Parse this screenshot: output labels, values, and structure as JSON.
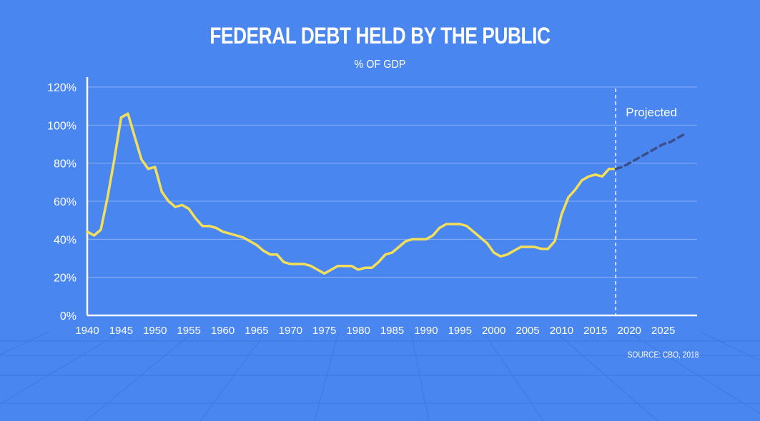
{
  "title": "FEDERAL DEBT HELD BY THE PUBLIC",
  "subtitle": "% OF GDP",
  "source": "SOURCE: CBO, 2018",
  "colors": {
    "background": "#4a86f0",
    "line": "#f3df5a",
    "projected": "#3a4f8a",
    "axis": "#ffffff",
    "grid": "#8ab0f6"
  },
  "chart_data": {
    "type": "line",
    "title": "FEDERAL DEBT HELD BY THE PUBLIC",
    "subtitle": "% OF GDP",
    "xlabel": "",
    "ylabel": "",
    "xlim": [
      1940,
      2030
    ],
    "ylim": [
      0,
      120
    ],
    "x_ticks": [
      1940,
      1945,
      1950,
      1955,
      1960,
      1965,
      1970,
      1975,
      1980,
      1985,
      1990,
      1995,
      2000,
      2005,
      2010,
      2015,
      2020,
      2025
    ],
    "y_ticks": [
      0,
      20,
      40,
      60,
      80,
      100,
      120
    ],
    "y_tick_labels": [
      "0%",
      "20%",
      "40%",
      "60%",
      "80%",
      "100%",
      "120%"
    ],
    "grid": "horizontal",
    "projection_marker": {
      "x": 2018,
      "label": "Projected"
    },
    "series": [
      {
        "style": "solid",
        "x": [
          1940,
          1941,
          1942,
          1943,
          1944,
          1945,
          1946,
          1947,
          1948,
          1949,
          1950,
          1951,
          1952,
          1953,
          1954,
          1955,
          1956,
          1957,
          1958,
          1959,
          1960,
          1961,
          1962,
          1963,
          1964,
          1965,
          1966,
          1967,
          1968,
          1969,
          1970,
          1971,
          1972,
          1973,
          1974,
          1975,
          1976,
          1977,
          1978,
          1979,
          1980,
          1981,
          1982,
          1983,
          1984,
          1985,
          1986,
          1987,
          1988,
          1989,
          1990,
          1991,
          1992,
          1993,
          1994,
          1995,
          1996,
          1997,
          1998,
          1999,
          2000,
          2001,
          2002,
          2003,
          2004,
          2005,
          2006,
          2007,
          2008,
          2009,
          2010,
          2011,
          2012,
          2013,
          2014,
          2015,
          2016,
          2017,
          2018
        ],
        "values": [
          44,
          42,
          45,
          62,
          82,
          104,
          106,
          94,
          82,
          77,
          78,
          65,
          60,
          57,
          58,
          56,
          51,
          47,
          47,
          46,
          44,
          43,
          42,
          41,
          39,
          37,
          34,
          32,
          32,
          28,
          27,
          27,
          27,
          26,
          24,
          22,
          24,
          26,
          26,
          26,
          24,
          25,
          25,
          28,
          32,
          33,
          36,
          39,
          40,
          40,
          40,
          42,
          46,
          48,
          48,
          48,
          47,
          44,
          41,
          38,
          33,
          31,
          32,
          34,
          36,
          36,
          36,
          35,
          35,
          39,
          53,
          62,
          66,
          71,
          73,
          74,
          73,
          77,
          77
        ]
      },
      {
        "style": "dashed",
        "x": [
          2018,
          2019,
          2020,
          2021,
          2022,
          2023,
          2024,
          2025,
          2026,
          2027,
          2028
        ],
        "values": [
          77,
          78,
          80,
          82,
          84,
          86,
          88,
          90,
          91,
          93,
          95
        ]
      }
    ]
  }
}
